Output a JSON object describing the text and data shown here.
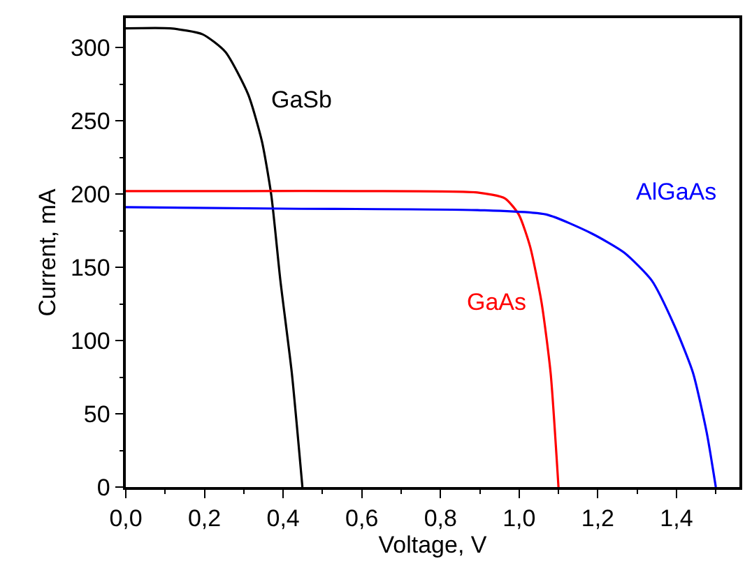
{
  "chart_data": {
    "type": "line",
    "xlabel": "Voltage, V",
    "ylabel": "Current, mA",
    "xlim": [
      0,
      1.56
    ],
    "ylim": [
      0,
      320
    ],
    "xticks": [
      {
        "value": 0,
        "label": "0,0"
      },
      {
        "value": 0.2,
        "label": "0,2"
      },
      {
        "value": 0.4,
        "label": "0,4"
      },
      {
        "value": 0.6,
        "label": "0,6"
      },
      {
        "value": 0.8,
        "label": "0,8"
      },
      {
        "value": 1.0,
        "label": "1,0"
      },
      {
        "value": 1.2,
        "label": "1,2"
      },
      {
        "value": 1.4,
        "label": "1,4"
      }
    ],
    "yticks": [
      0,
      50,
      100,
      150,
      200,
      250,
      300
    ],
    "grid": false,
    "legend": false,
    "marker": "none",
    "line_style": "solid",
    "series": [
      {
        "name": "GaSb",
        "color": "#000000",
        "x": [
          0,
          0.113,
          0.195,
          0.253,
          0.311,
          0.346,
          0.37,
          0.393,
          0.422,
          0.449
        ],
        "values": [
          313,
          313,
          309,
          297,
          268,
          236,
          199,
          141,
          78,
          0
        ]
      },
      {
        "name": "GaAs",
        "color": "#ff0000",
        "x": [
          0,
          0.3,
          0.6,
          0.894,
          0.964,
          0.999,
          1.028,
          1.057,
          1.08,
          1.1
        ],
        "values": [
          202,
          202,
          202,
          201,
          197,
          186,
          164,
          126,
          78,
          0
        ]
      },
      {
        "name": "AlGaAs",
        "color": "#0000ff",
        "x": [
          0,
          0.4,
          0.894,
          1.069,
          1.185,
          1.267,
          1.337,
          1.395,
          1.442,
          1.477,
          1.5
        ],
        "values": [
          191,
          190,
          189,
          186,
          173,
          160,
          141,
          110,
          78,
          37,
          0
        ]
      }
    ]
  }
}
